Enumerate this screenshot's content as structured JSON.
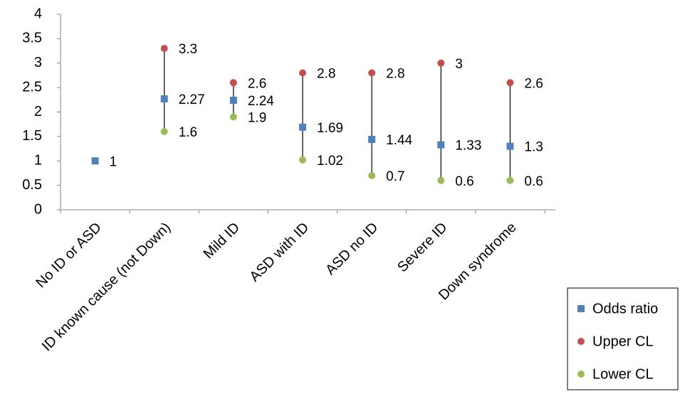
{
  "chart_data": {
    "type": "scatter",
    "categories": [
      "No ID or ASD",
      "ID known cause (not Down)",
      "Mild ID",
      "ASD with ID",
      "ASD no ID",
      "Severe ID",
      "Down syndrome"
    ],
    "series": [
      {
        "name": "Odds ratio",
        "color": "#4f81bd",
        "marker": "square",
        "values": [
          1,
          2.27,
          2.24,
          1.69,
          1.44,
          1.33,
          1.3
        ]
      },
      {
        "name": "Upper CL",
        "color": "#c0504d",
        "marker": "circle",
        "values": [
          null,
          3.3,
          2.6,
          2.8,
          2.8,
          3,
          2.6
        ]
      },
      {
        "name": "Lower CL",
        "color": "#9bbb59",
        "marker": "circle",
        "values": [
          null,
          1.6,
          1.9,
          1.02,
          0.7,
          0.6,
          0.6
        ]
      }
    ],
    "ylim": [
      0,
      4
    ],
    "yticks": [
      0,
      0.5,
      1,
      1.5,
      2,
      2.5,
      3,
      3.5,
      4
    ],
    "grid": false,
    "legend": "bottom-right"
  }
}
